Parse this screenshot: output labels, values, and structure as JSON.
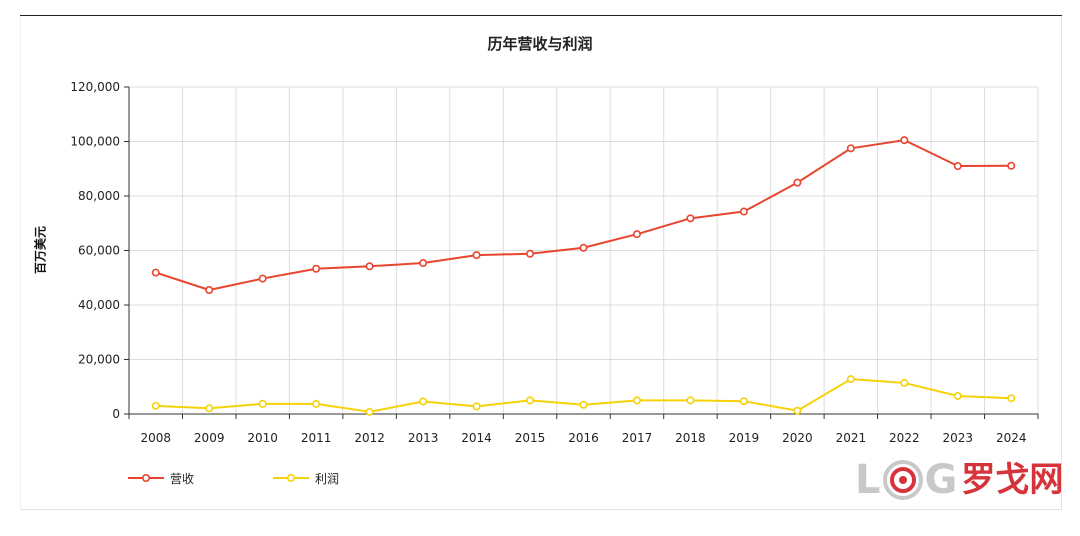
{
  "chart_data": {
    "type": "line",
    "title": "历年营收与利润",
    "ylabel": "百万美元",
    "xlabel": "",
    "categories": [
      "2008",
      "2009",
      "2010",
      "2011",
      "2012",
      "2013",
      "2014",
      "2015",
      "2016",
      "2017",
      "2018",
      "2019",
      "2020",
      "2021",
      "2022",
      "2023",
      "2024"
    ],
    "ylim": [
      0,
      120000
    ],
    "yticks": [
      "0",
      "20,000",
      "40,000",
      "60,000",
      "80,000",
      "100,000",
      "120,000"
    ],
    "grid": true,
    "legend_position": "bottom-left",
    "series": [
      {
        "name": "营收",
        "color": "#e8452f",
        "values": [
          51900,
          45500,
          49700,
          53300,
          54200,
          55400,
          58300,
          58800,
          61000,
          66000,
          71800,
          74300,
          84900,
          97500,
          100500,
          91000,
          91100
        ]
      },
      {
        "name": "利润",
        "color": "#f5d20a",
        "values": [
          3000,
          2100,
          3700,
          3700,
          800,
          4600,
          2800,
          5000,
          3400,
          5000,
          5000,
          4700,
          1200,
          12800,
          11400,
          6600,
          5800
        ]
      }
    ]
  },
  "logo": {
    "letter_l": "L",
    "letter_g": "G",
    "chinese": "罗戈网"
  }
}
